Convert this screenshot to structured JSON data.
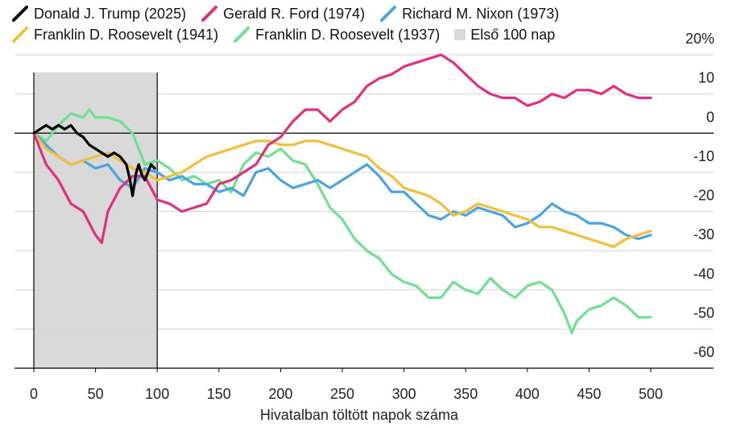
{
  "legend": {
    "row1": [
      {
        "label": "Donald J. Trump (2025)",
        "color": "#000000"
      },
      {
        "label": "Gerald R. Ford (1974)",
        "color": "#e0307f"
      },
      {
        "label": "Richard M. Nixon (1973)",
        "color": "#4aa3e3"
      }
    ],
    "row2": [
      {
        "label": "Franklin D. Roosevelt (1941)",
        "color": "#f2bf3a"
      },
      {
        "label": "Franklin D. Roosevelt (1937)",
        "color": "#6fe08f"
      }
    ],
    "shade_label": "Első 100 nap",
    "shade_color": "#d9d9d9"
  },
  "chart_data": {
    "type": "line",
    "xlabel": "Hivatalban töltött napok száma",
    "ylabel": "",
    "xlim": [
      0,
      500
    ],
    "ylim": [
      -60,
      20
    ],
    "x_ticks": [
      "0",
      "50",
      "100",
      "150",
      "200",
      "250",
      "300",
      "350",
      "400",
      "450",
      "500"
    ],
    "y_ticks": [
      {
        "value": 20,
        "label": "20%"
      },
      {
        "value": 10,
        "label": "10"
      },
      {
        "value": 0,
        "label": "0"
      },
      {
        "value": -10,
        "label": "-10"
      },
      {
        "value": -20,
        "label": "-20"
      },
      {
        "value": -30,
        "label": "-30"
      },
      {
        "value": -40,
        "label": "-40"
      },
      {
        "value": -50,
        "label": "-50"
      },
      {
        "value": -60,
        "label": "-60"
      }
    ],
    "shaded_range": [
      0,
      100
    ],
    "grid": "horizontal",
    "legend_position": "top",
    "series": [
      {
        "name": "Franklin D. Roosevelt (1937)",
        "color": "#6fe08f",
        "x": [
          0,
          10,
          20,
          30,
          40,
          45,
          50,
          60,
          70,
          80,
          90,
          100,
          110,
          120,
          130,
          140,
          150,
          160,
          170,
          180,
          190,
          200,
          210,
          220,
          230,
          240,
          250,
          260,
          270,
          280,
          290,
          300,
          310,
          320,
          330,
          340,
          350,
          360,
          370,
          380,
          390,
          400,
          410,
          420,
          430,
          436,
          440,
          450,
          460,
          470,
          480,
          490,
          500
        ],
        "y": [
          0,
          -2,
          2,
          5,
          4,
          6,
          4,
          4,
          3,
          0,
          -8,
          -7,
          -9,
          -12,
          -11,
          -13,
          -12,
          -15,
          -8,
          -5,
          -6,
          -4,
          -7,
          -8,
          -13,
          -19,
          -22,
          -27,
          -30,
          -32,
          -36,
          -38,
          -39,
          -42,
          -42,
          -38,
          -40,
          -41,
          -37,
          -40,
          -42,
          -39,
          -38,
          -40,
          -46,
          -51,
          -48,
          -45,
          -44,
          -42,
          -44,
          -47,
          -47
        ]
      },
      {
        "name": "Richard M. Nixon (1973)",
        "color": "#4aa3e3",
        "x": [
          0,
          10,
          20,
          30,
          40,
          50,
          60,
          70,
          80,
          90,
          100,
          110,
          120,
          130,
          140,
          150,
          160,
          170,
          180,
          190,
          200,
          210,
          220,
          230,
          240,
          250,
          260,
          270,
          280,
          290,
          300,
          310,
          320,
          330,
          340,
          350,
          360,
          370,
          380,
          390,
          400,
          410,
          420,
          430,
          440,
          450,
          460,
          470,
          480,
          490,
          500
        ],
        "y": [
          0,
          -3,
          -6,
          -8,
          -7,
          -9,
          -8,
          -12,
          -14,
          -9,
          -10,
          -12,
          -11,
          -13,
          -13,
          -15,
          -14,
          -16,
          -10,
          -9,
          -12,
          -14,
          -13,
          -12,
          -14,
          -12,
          -10,
          -8,
          -11,
          -15,
          -15,
          -18,
          -21,
          -22,
          -20,
          -21,
          -19,
          -20,
          -21,
          -24,
          -23,
          -21,
          -18,
          -20,
          -21,
          -23,
          -23,
          -24,
          -26,
          -27,
          -26
        ]
      },
      {
        "name": "Franklin D. Roosevelt (1941)",
        "color": "#f2bf3a",
        "x": [
          0,
          10,
          20,
          30,
          40,
          50,
          60,
          70,
          80,
          90,
          100,
          110,
          120,
          130,
          140,
          150,
          160,
          170,
          180,
          190,
          200,
          210,
          220,
          230,
          240,
          250,
          260,
          270,
          280,
          290,
          300,
          310,
          320,
          330,
          340,
          350,
          360,
          370,
          380,
          390,
          400,
          410,
          420,
          430,
          440,
          450,
          460,
          470,
          480,
          490,
          500
        ],
        "y": [
          0,
          -4,
          -6,
          -8,
          -7,
          -6,
          -5,
          -7,
          -9,
          -10,
          -12,
          -11,
          -10,
          -8,
          -6,
          -5,
          -4,
          -3,
          -2,
          -2,
          -3,
          -3,
          -2,
          -2,
          -3,
          -4,
          -5,
          -6,
          -9,
          -11,
          -14,
          -15,
          -16,
          -18,
          -21,
          -20,
          -18,
          -19,
          -20,
          -21,
          -22,
          -24,
          -24,
          -25,
          -26,
          -27,
          -28,
          -29,
          -27,
          -26,
          -25
        ]
      },
      {
        "name": "Gerald R. Ford (1974)",
        "color": "#e0307f",
        "x": [
          0,
          10,
          20,
          30,
          40,
          50,
          55,
          60,
          70,
          80,
          90,
          100,
          110,
          120,
          130,
          140,
          150,
          160,
          170,
          180,
          190,
          200,
          210,
          220,
          230,
          240,
          250,
          260,
          270,
          280,
          290,
          300,
          310,
          320,
          330,
          340,
          350,
          360,
          370,
          380,
          390,
          400,
          410,
          420,
          430,
          440,
          450,
          460,
          470,
          480,
          490,
          500
        ],
        "y": [
          0,
          -8,
          -12,
          -18,
          -20,
          -26,
          -28,
          -20,
          -14,
          -11,
          -11,
          -17,
          -18,
          -20,
          -19,
          -18,
          -13,
          -12,
          -10,
          -8,
          -3,
          -1,
          3,
          6,
          6,
          3,
          6,
          8,
          12,
          14,
          15,
          17,
          18,
          19,
          20,
          18,
          15,
          12,
          10,
          9,
          9,
          7,
          8,
          10,
          9,
          11,
          11,
          10,
          12,
          10,
          9,
          9
        ]
      },
      {
        "name": "Donald J. Trump (2025)",
        "color": "#000000",
        "x": [
          0,
          5,
          10,
          15,
          20,
          25,
          30,
          35,
          40,
          45,
          50,
          55,
          60,
          65,
          70,
          75,
          78,
          80,
          83,
          85,
          88,
          90,
          95,
          98
        ],
        "y": [
          0,
          1,
          2,
          1,
          2,
          1,
          2,
          0,
          -1,
          -3,
          -4,
          -5,
          -6,
          -5,
          -6,
          -8,
          -12,
          -16,
          -10,
          -8,
          -11,
          -12,
          -8,
          -9
        ]
      }
    ]
  }
}
